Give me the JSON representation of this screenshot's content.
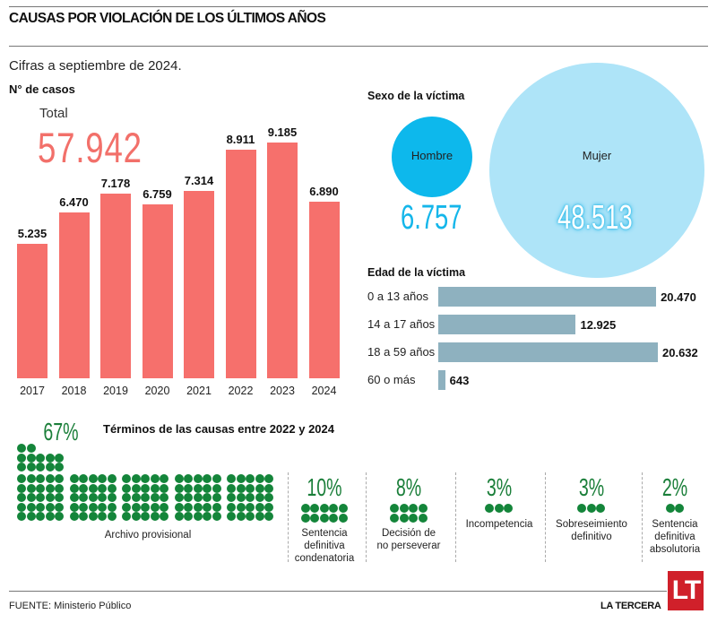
{
  "header": {
    "title": "CAUSAS POR VIOLACIÓN DE LOS ÚLTIMOS AÑOS",
    "subtitle": "Cifras a septiembre de 2024."
  },
  "footer": {
    "source": "FUENTE: Ministerio Público",
    "brand": "LA TERCERA",
    "logo_text": "LT",
    "logo_color": "#d0202a"
  },
  "chart_data": [
    {
      "type": "bar",
      "title": "N° de casos",
      "total_label": "Total",
      "total_value": "57.942",
      "categories": [
        "2017",
        "2018",
        "2019",
        "2020",
        "2021",
        "2022",
        "2023",
        "2024"
      ],
      "values": [
        5235,
        6470,
        7178,
        6759,
        7314,
        8911,
        9185,
        6890
      ],
      "value_labels": [
        "5.235",
        "6.470",
        "7.178",
        "6.759",
        "7.314",
        "8.911",
        "9.185",
        "6.890"
      ],
      "xlabel": "",
      "ylabel": "",
      "ylim": [
        0,
        9185
      ],
      "color": "#f6706c",
      "grid": false
    },
    {
      "type": "bubble",
      "title": "Sexo de la víctima",
      "categories": [
        "Hombre",
        "Mujer"
      ],
      "values": [
        6757,
        48513
      ],
      "value_labels": [
        "6.757",
        "48.513"
      ],
      "colors": [
        "#0db8ec",
        "#aee4f8"
      ]
    },
    {
      "type": "bar",
      "orientation": "horizontal",
      "title": "Edad de la víctima",
      "categories": [
        "0 a 13 años",
        "14 a 17 años",
        "18 a 59 años",
        "60 o más"
      ],
      "values": [
        20470,
        12925,
        20632,
        643
      ],
      "value_labels": [
        "20.470",
        "12.925",
        "20.632",
        "643"
      ],
      "color": "#8eb1bf",
      "xlim": [
        0,
        20632
      ]
    },
    {
      "type": "pictogram",
      "title": "Términos de las causas entre 2022 y 2024",
      "color": "#14853a",
      "categories": [
        {
          "label": "Archivo provisional",
          "percent_label": "67%",
          "percent": 67
        },
        {
          "label": "Sentencia definitiva condenatoria",
          "percent_label": "10%",
          "percent": 10
        },
        {
          "label": "Decisión de no perseverar",
          "percent_label": "8%",
          "percent": 8
        },
        {
          "label": "Incompetencia",
          "percent_label": "3%",
          "percent": 3
        },
        {
          "label": "Sobreseimiento definitivo",
          "percent_label": "3%",
          "percent": 3
        },
        {
          "label": "Sentencia definitiva absolutoria",
          "percent_label": "2%",
          "percent": 2
        }
      ]
    }
  ]
}
